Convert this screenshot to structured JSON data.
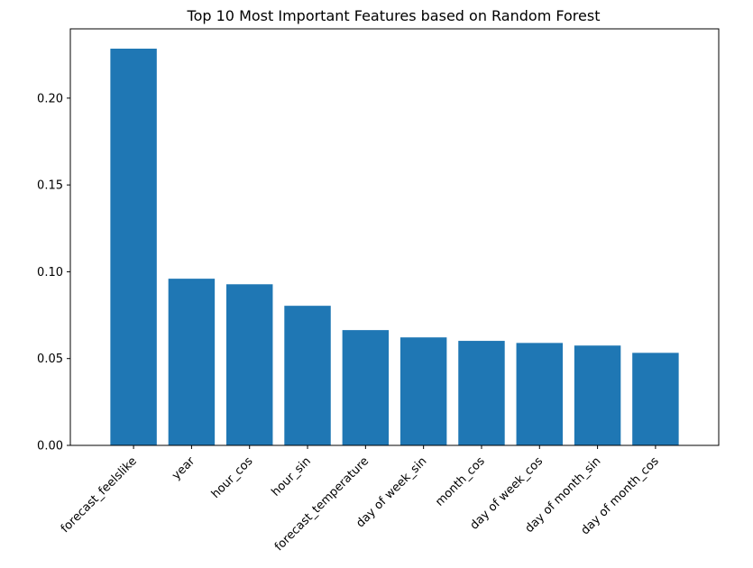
{
  "chart_data": {
    "type": "bar",
    "title": "Top 10 Most Important Features based on Random Forest",
    "xlabel": "",
    "ylabel": "",
    "categories": [
      "forecast_feelslike",
      "year",
      "hour_cos",
      "hour_sin",
      "forecast_temperature",
      "day of week_sin",
      "month_cos",
      "day of week_cos",
      "day of month_sin",
      "day of month_cos"
    ],
    "values": [
      0.2285,
      0.096,
      0.0928,
      0.0804,
      0.0664,
      0.0622,
      0.0602,
      0.059,
      0.0575,
      0.0533
    ],
    "ylim": [
      0,
      0.2399
    ],
    "yticks": [
      0.0,
      0.05,
      0.1,
      0.15,
      0.2
    ],
    "ytick_labels": [
      "0.00",
      "0.05",
      "0.10",
      "0.15",
      "0.20"
    ],
    "bar_color": "#1f77b4",
    "grid": false,
    "legend": "none",
    "x_tick_rotation": 45
  }
}
